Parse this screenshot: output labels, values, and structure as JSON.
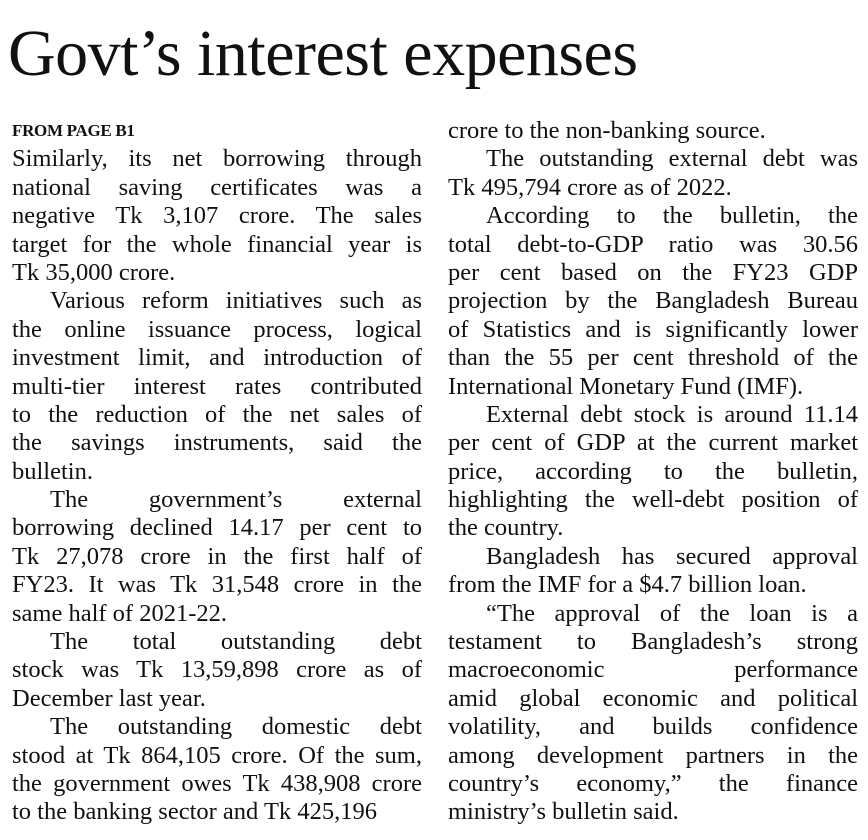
{
  "headline": "Govt’s interest expenses",
  "kicker": "FROM PAGE B1",
  "left_column": [
    [
      "Similarly, its net borrowing through",
      "national saving certificates was a",
      "negative Tk 3,107 crore. The sales",
      "target for the whole financial year is",
      "Tk 35,000 crore."
    ],
    [
      "Various reform initiatives such as",
      "the online issuance process, logical",
      "investment limit, and introduction of",
      "multi-tier interest rates contributed",
      "to the reduction of the net sales of",
      "the savings instruments, said the",
      "bulletin."
    ],
    [
      "The government’s external",
      "borrowing declined 14.17 per cent to",
      "Tk 27,078 crore in the first half of",
      "FY23. It was Tk 31,548 crore in the",
      "same half of 2021-22."
    ],
    [
      "The total outstanding debt",
      "stock was Tk 13,59,898 crore as of",
      "December last year."
    ],
    [
      "The outstanding domestic debt",
      "stood at Tk 864,105 crore. Of the sum,",
      "the government owes Tk 438,908 crore",
      "to the banking sector and Tk 425,196"
    ]
  ],
  "right_column": [
    [
      "crore to the non-banking source."
    ],
    [
      "The outstanding external debt was",
      "Tk 495,794 crore as of 2022."
    ],
    [
      "According to the bulletin, the",
      "total debt-to-GDP ratio was 30.56",
      "per cent based on the FY23 GDP",
      "projection by the Bangladesh Bureau",
      "of Statistics and is significantly lower",
      "than the 55 per cent threshold of the",
      "International Monetary Fund (IMF)."
    ],
    [
      "External debt stock is around 11.14",
      "per cent of GDP at the current market",
      "price, according to the bulletin,",
      "highlighting the well-debt position of",
      "the country."
    ],
    [
      "Bangladesh has secured approval",
      "from the IMF for a $4.7 billion loan."
    ],
    [
      "“The approval of the loan is a",
      "testament to Bangladesh’s strong",
      "macroeconomic performance",
      "amid global economic and political",
      "volatility, and builds confidence",
      "among development partners in the",
      "country’s economy,” the finance",
      "ministry’s bulletin said."
    ]
  ]
}
